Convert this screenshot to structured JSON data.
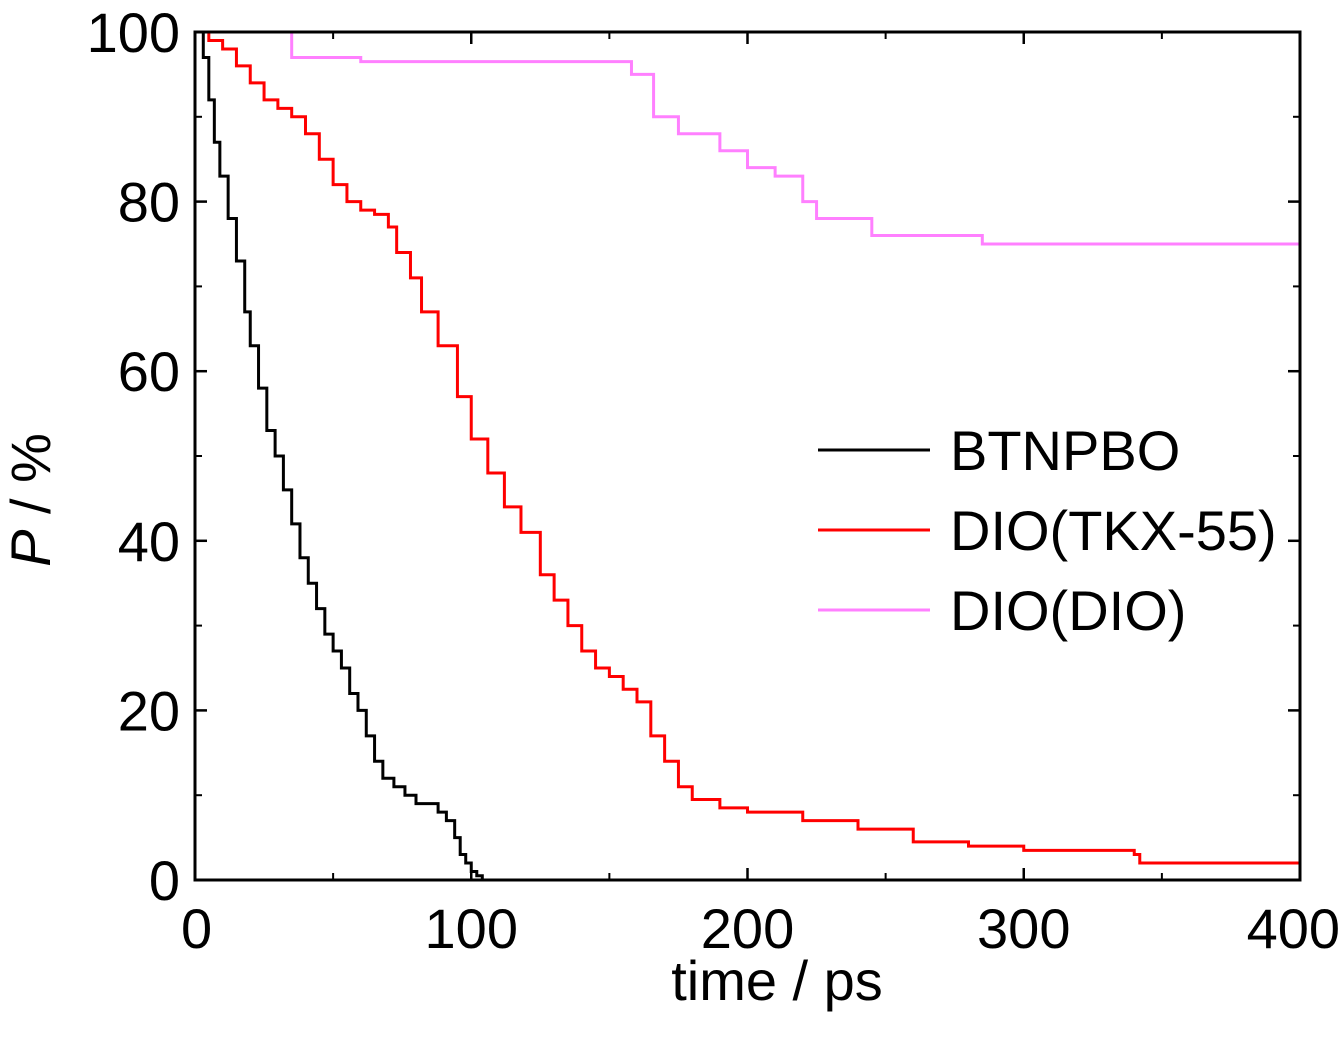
{
  "chart_data": {
    "type": "line",
    "title": "",
    "xlabel": "time / ps",
    "ylabel_symbol": "P",
    "ylabel_unit": " / %",
    "xlim": [
      0,
      400
    ],
    "ylim": [
      0,
      100
    ],
    "xticks": [
      0,
      100,
      200,
      300,
      400
    ],
    "yticks": [
      0,
      20,
      40,
      60,
      80,
      100
    ],
    "grid": false,
    "legend_position": "center-right",
    "series": [
      {
        "name": "BTNPBO",
        "color": "#000000",
        "points": [
          [
            0,
            100
          ],
          [
            3,
            97
          ],
          [
            5,
            92
          ],
          [
            7,
            87
          ],
          [
            9,
            83
          ],
          [
            12,
            78
          ],
          [
            15,
            73
          ],
          [
            18,
            67
          ],
          [
            20,
            63
          ],
          [
            23,
            58
          ],
          [
            26,
            53
          ],
          [
            29,
            50
          ],
          [
            32,
            46
          ],
          [
            35,
            42
          ],
          [
            38,
            38
          ],
          [
            41,
            35
          ],
          [
            44,
            32
          ],
          [
            47,
            29
          ],
          [
            50,
            27
          ],
          [
            53,
            25
          ],
          [
            56,
            22
          ],
          [
            59,
            20
          ],
          [
            62,
            17
          ],
          [
            65,
            14
          ],
          [
            68,
            12
          ],
          [
            72,
            11
          ],
          [
            76,
            10
          ],
          [
            80,
            9
          ],
          [
            84,
            9
          ],
          [
            88,
            8
          ],
          [
            91,
            7
          ],
          [
            94,
            5
          ],
          [
            96,
            3
          ],
          [
            98,
            2
          ],
          [
            100,
            1
          ],
          [
            102,
            0.5
          ],
          [
            104,
            0
          ]
        ]
      },
      {
        "name": "DIO(TKX-55)",
        "color": "#ff0000",
        "points": [
          [
            0,
            100
          ],
          [
            5,
            99
          ],
          [
            10,
            98
          ],
          [
            15,
            96
          ],
          [
            20,
            94
          ],
          [
            25,
            92
          ],
          [
            30,
            91
          ],
          [
            35,
            90
          ],
          [
            40,
            88
          ],
          [
            45,
            85
          ],
          [
            50,
            82
          ],
          [
            55,
            80
          ],
          [
            60,
            79
          ],
          [
            65,
            78.5
          ],
          [
            70,
            77
          ],
          [
            73,
            74
          ],
          [
            78,
            71
          ],
          [
            82,
            67
          ],
          [
            88,
            63
          ],
          [
            95,
            57
          ],
          [
            100,
            52
          ],
          [
            106,
            48
          ],
          [
            112,
            44
          ],
          [
            118,
            41
          ],
          [
            125,
            36
          ],
          [
            130,
            33
          ],
          [
            135,
            30
          ],
          [
            140,
            27
          ],
          [
            145,
            25
          ],
          [
            150,
            24
          ],
          [
            155,
            22.5
          ],
          [
            160,
            21
          ],
          [
            165,
            17
          ],
          [
            170,
            14
          ],
          [
            175,
            11
          ],
          [
            180,
            9.5
          ],
          [
            190,
            8.5
          ],
          [
            200,
            8
          ],
          [
            220,
            7
          ],
          [
            240,
            6
          ],
          [
            260,
            4.5
          ],
          [
            280,
            4
          ],
          [
            300,
            3.5
          ],
          [
            320,
            3.5
          ],
          [
            340,
            3
          ],
          [
            342,
            2
          ],
          [
            360,
            2
          ],
          [
            380,
            2
          ],
          [
            400,
            2
          ]
        ]
      },
      {
        "name": "DIO(DIO)",
        "color": "#ff80ff",
        "points": [
          [
            0,
            100
          ],
          [
            20,
            100
          ],
          [
            32,
            100
          ],
          [
            35,
            97
          ],
          [
            60,
            96.5
          ],
          [
            100,
            96.5
          ],
          [
            140,
            96.5
          ],
          [
            155,
            96.5
          ],
          [
            158,
            95
          ],
          [
            166,
            90
          ],
          [
            175,
            88
          ],
          [
            190,
            86
          ],
          [
            200,
            84
          ],
          [
            210,
            83
          ],
          [
            220,
            80
          ],
          [
            225,
            78
          ],
          [
            245,
            76
          ],
          [
            270,
            76
          ],
          [
            285,
            75
          ],
          [
            300,
            75
          ],
          [
            350,
            75
          ],
          [
            400,
            75
          ]
        ]
      }
    ]
  }
}
